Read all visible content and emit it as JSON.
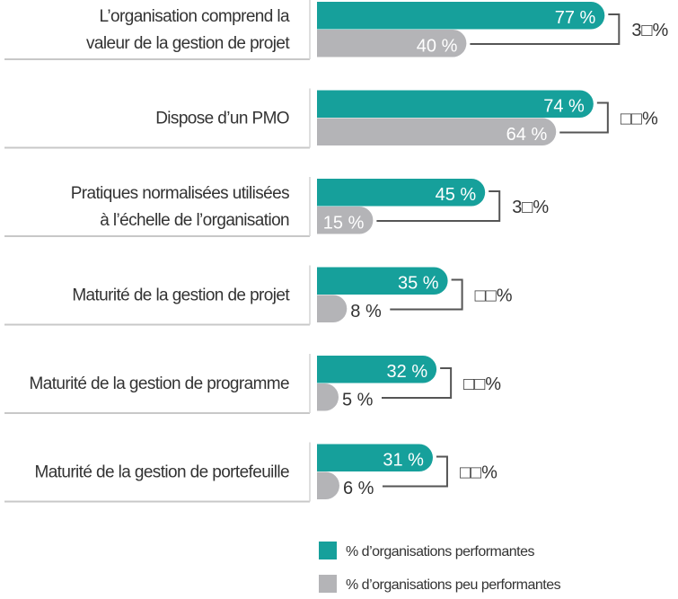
{
  "chart_data": {
    "type": "bar",
    "orientation": "horizontal",
    "categories": [
      [
        "L’organisation comprend la",
        "valeur de la gestion de projet"
      ],
      [
        "Dispose d’un PMO"
      ],
      [
        "Pratiques normalisées utilisées",
        "à l’échelle de l’organisation"
      ],
      [
        "Maturité de la gestion de projet"
      ],
      [
        "Maturité de la gestion de programme"
      ],
      [
        "Maturité de la gestion de portefeuille"
      ]
    ],
    "series": [
      {
        "name": "% d’organisations performantes",
        "values": [
          77,
          74,
          45,
          35,
          32,
          31
        ],
        "labels": [
          "77 %",
          "74 %",
          "45 %",
          "35 %",
          "32 %",
          "31 %"
        ],
        "color": "#16a09b"
      },
      {
        "name": "% d’organisations peu performantes",
        "values": [
          40,
          64,
          15,
          8,
          5,
          6
        ],
        "labels": [
          "40 %",
          "64 %",
          "15 %",
          "8 %",
          "5 %",
          "6 %"
        ],
        "color": "#b4b4b7"
      }
    ],
    "differences": [
      "3□%",
      "□□%",
      "3□%",
      "□□%",
      "□□%",
      "□□%"
    ],
    "xlim": [
      0,
      100
    ],
    "grid": false,
    "legend": "bottom"
  }
}
